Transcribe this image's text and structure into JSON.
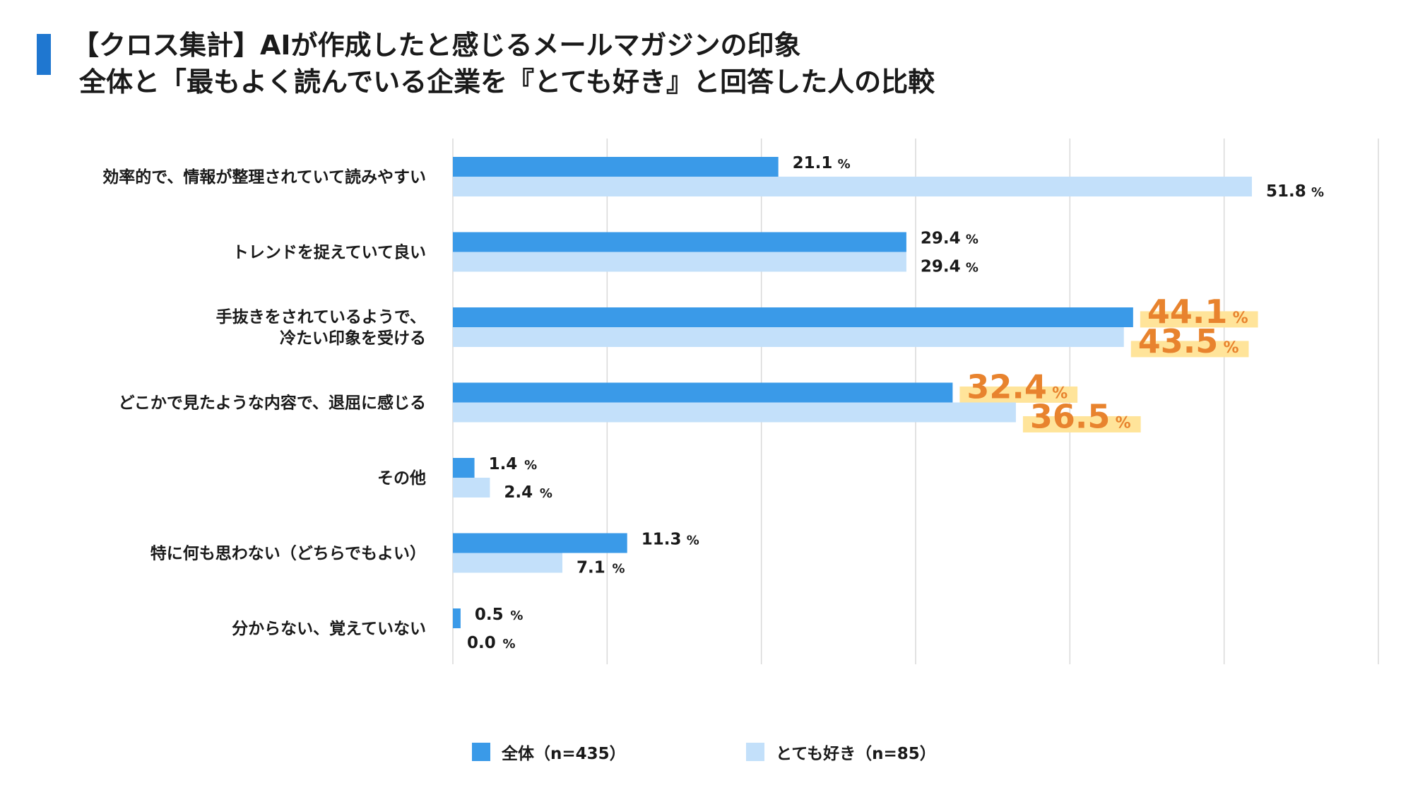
{
  "title": {
    "line1": "【クロス集計】AIが作成したと感じるメールマガジンの印象",
    "line2": "全体と「最もよく読んでいる企業を『とても好き』と回答した人の比較"
  },
  "colors": {
    "series1": "#3a9ae8",
    "series2": "#c3e0fa",
    "highlight_text": "#e8832e",
    "highlight_bg": "#ffe49a",
    "grid": "#d9d9d9",
    "accent_bar": "#1f77d0"
  },
  "chart_data": {
    "type": "bar",
    "orientation": "horizontal",
    "categories": [
      [
        "効率的で、情報が整理されていて読みやすい"
      ],
      [
        "トレンドを捉えていて良い"
      ],
      [
        "手抜きをされているようで、",
        "冷たい印象を受ける"
      ],
      [
        "どこかで見たような内容で、退屈に感じる"
      ],
      [
        "その他"
      ],
      [
        "特に何も思わない（どちらでもよい）"
      ],
      [
        "分からない、覚えていない"
      ]
    ],
    "series": [
      {
        "name": "全体（n=435）",
        "values": [
          21.1,
          29.4,
          44.1,
          32.4,
          1.4,
          11.3,
          0.5
        ]
      },
      {
        "name": "とても好き（n=85）",
        "values": [
          51.8,
          29.4,
          43.5,
          36.5,
          2.4,
          7.1,
          0.0
        ]
      }
    ],
    "value_labels": [
      [
        "21.1",
        "29.4",
        "44.1",
        "32.4",
        "1.4",
        "11.3",
        "0.5"
      ],
      [
        "51.8",
        "29.4",
        "43.5",
        "36.5",
        "2.4",
        "7.1",
        "0.0"
      ]
    ],
    "unit": "%",
    "highlighted_categories": [
      2,
      3
    ],
    "xlim": [
      0,
      60
    ],
    "grid": true,
    "legend_position": "bottom"
  }
}
